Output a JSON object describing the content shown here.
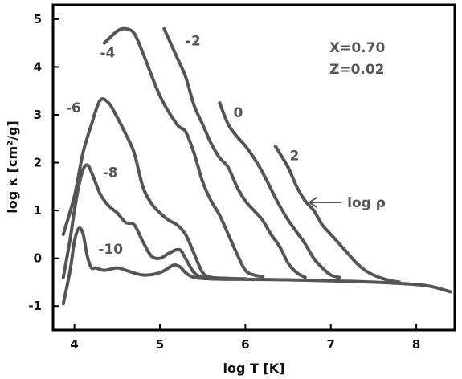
{
  "chart_data": {
    "type": "line",
    "title": "",
    "xlabel": "log T [K]",
    "ylabel": "log κ [cm²/g]",
    "xlim": [
      3.75,
      8.45
    ],
    "ylim": [
      -1.5,
      5.3
    ],
    "xticks": [
      4,
      5,
      6,
      7,
      8
    ],
    "yticks": [
      -1,
      0,
      1,
      2,
      3,
      4,
      5
    ],
    "grid": false,
    "legend": "none",
    "annotations": {
      "composition_x": "X=0.70",
      "composition_z": "Z=0.02",
      "arrow_label": "log ρ",
      "arrow_at": [
        6.75,
        1.17
      ]
    },
    "series": [
      {
        "label": "-10",
        "label_at": [
          4.28,
          0.2
        ],
        "points": [
          [
            3.87,
            -0.95
          ],
          [
            3.95,
            -0.25
          ],
          [
            4.0,
            0.35
          ],
          [
            4.05,
            0.62
          ],
          [
            4.1,
            0.52
          ],
          [
            4.15,
            0.05
          ],
          [
            4.2,
            -0.2
          ],
          [
            4.25,
            -0.2
          ],
          [
            4.35,
            -0.25
          ],
          [
            4.5,
            -0.2
          ],
          [
            4.6,
            -0.25
          ],
          [
            4.8,
            -0.35
          ],
          [
            5.0,
            -0.3
          ],
          [
            5.15,
            -0.15
          ],
          [
            5.2,
            -0.15
          ],
          [
            5.25,
            -0.2
          ],
          [
            5.3,
            -0.3
          ],
          [
            5.4,
            -0.4
          ],
          [
            5.6,
            -0.43
          ],
          [
            5.8,
            -0.44
          ],
          [
            6.0,
            -0.44
          ],
          [
            6.5,
            -0.45
          ],
          [
            7.0,
            -0.47
          ],
          [
            7.5,
            -0.5
          ],
          [
            8.0,
            -0.55
          ],
          [
            8.2,
            -0.6
          ],
          [
            8.4,
            -0.7
          ]
        ]
      },
      {
        "label": "-8",
        "label_at": [
          4.33,
          1.8
        ],
        "points": [
          [
            3.87,
            -0.4
          ],
          [
            3.95,
            0.4
          ],
          [
            4.0,
            1.0
          ],
          [
            4.05,
            1.5
          ],
          [
            4.1,
            1.85
          ],
          [
            4.15,
            1.95
          ],
          [
            4.2,
            1.8
          ],
          [
            4.3,
            1.35
          ],
          [
            4.4,
            1.1
          ],
          [
            4.5,
            0.95
          ],
          [
            4.6,
            0.75
          ],
          [
            4.7,
            0.7
          ],
          [
            4.8,
            0.35
          ],
          [
            4.9,
            0.05
          ],
          [
            5.0,
            0.0
          ],
          [
            5.1,
            0.1
          ],
          [
            5.2,
            0.18
          ],
          [
            5.25,
            0.15
          ],
          [
            5.3,
            0.0
          ],
          [
            5.4,
            -0.3
          ],
          [
            5.5,
            -0.4
          ],
          [
            5.6,
            -0.43
          ],
          [
            5.8,
            -0.43
          ]
        ]
      },
      {
        "label": "-6",
        "label_at": [
          3.9,
          3.15
        ],
        "points": [
          [
            3.87,
            0.5
          ],
          [
            4.0,
            1.3
          ],
          [
            4.1,
            2.2
          ],
          [
            4.2,
            2.8
          ],
          [
            4.3,
            3.3
          ],
          [
            4.4,
            3.25
          ],
          [
            4.5,
            2.95
          ],
          [
            4.6,
            2.6
          ],
          [
            4.7,
            2.2
          ],
          [
            4.8,
            1.5
          ],
          [
            4.9,
            1.15
          ],
          [
            5.0,
            0.95
          ],
          [
            5.1,
            0.8
          ],
          [
            5.2,
            0.7
          ],
          [
            5.3,
            0.5
          ],
          [
            5.4,
            0.1
          ],
          [
            5.5,
            -0.3
          ],
          [
            5.6,
            -0.4
          ],
          [
            5.8,
            -0.42
          ],
          [
            6.0,
            -0.43
          ]
        ]
      },
      {
        "label": "-4",
        "label_at": [
          4.3,
          4.3
        ],
        "points": [
          [
            4.35,
            4.5
          ],
          [
            4.5,
            4.75
          ],
          [
            4.6,
            4.8
          ],
          [
            4.7,
            4.7
          ],
          [
            4.8,
            4.3
          ],
          [
            5.0,
            3.4
          ],
          [
            5.2,
            2.8
          ],
          [
            5.3,
            2.65
          ],
          [
            5.4,
            2.2
          ],
          [
            5.5,
            1.6
          ],
          [
            5.6,
            1.2
          ],
          [
            5.7,
            0.9
          ],
          [
            5.8,
            0.5
          ],
          [
            5.9,
            0.1
          ],
          [
            6.0,
            -0.25
          ],
          [
            6.1,
            -0.35
          ],
          [
            6.2,
            -0.38
          ]
        ]
      },
      {
        "label": "-2",
        "label_at": [
          5.3,
          4.55
        ],
        "points": [
          [
            5.05,
            4.8
          ],
          [
            5.2,
            4.2
          ],
          [
            5.3,
            3.8
          ],
          [
            5.4,
            3.2
          ],
          [
            5.5,
            2.8
          ],
          [
            5.6,
            2.4
          ],
          [
            5.7,
            2.1
          ],
          [
            5.8,
            1.9
          ],
          [
            5.9,
            1.5
          ],
          [
            6.0,
            1.2
          ],
          [
            6.1,
            1.0
          ],
          [
            6.2,
            0.8
          ],
          [
            6.3,
            0.5
          ],
          [
            6.4,
            0.25
          ],
          [
            6.5,
            -0.1
          ],
          [
            6.6,
            -0.3
          ],
          [
            6.7,
            -0.4
          ]
        ]
      },
      {
        "label": "0",
        "label_at": [
          5.86,
          3.05
        ],
        "points": [
          [
            5.7,
            3.25
          ],
          [
            5.8,
            2.8
          ],
          [
            5.9,
            2.55
          ],
          [
            6.0,
            2.35
          ],
          [
            6.1,
            2.1
          ],
          [
            6.2,
            1.8
          ],
          [
            6.3,
            1.45
          ],
          [
            6.4,
            1.1
          ],
          [
            6.5,
            0.8
          ],
          [
            6.6,
            0.55
          ],
          [
            6.7,
            0.3
          ],
          [
            6.8,
            0.0
          ],
          [
            6.9,
            -0.2
          ],
          [
            7.0,
            -0.35
          ],
          [
            7.1,
            -0.4
          ]
        ]
      },
      {
        "label": "2",
        "label_at": [
          6.52,
          2.15
        ],
        "points": [
          [
            6.35,
            2.35
          ],
          [
            6.5,
            1.9
          ],
          [
            6.6,
            1.5
          ],
          [
            6.7,
            1.2
          ],
          [
            6.8,
            1.0
          ],
          [
            6.9,
            0.7
          ],
          [
            7.0,
            0.5
          ],
          [
            7.1,
            0.3
          ],
          [
            7.2,
            0.1
          ],
          [
            7.3,
            -0.1
          ],
          [
            7.4,
            -0.25
          ],
          [
            7.5,
            -0.35
          ],
          [
            7.6,
            -0.42
          ],
          [
            7.7,
            -0.47
          ],
          [
            7.8,
            -0.5
          ]
        ]
      }
    ]
  }
}
